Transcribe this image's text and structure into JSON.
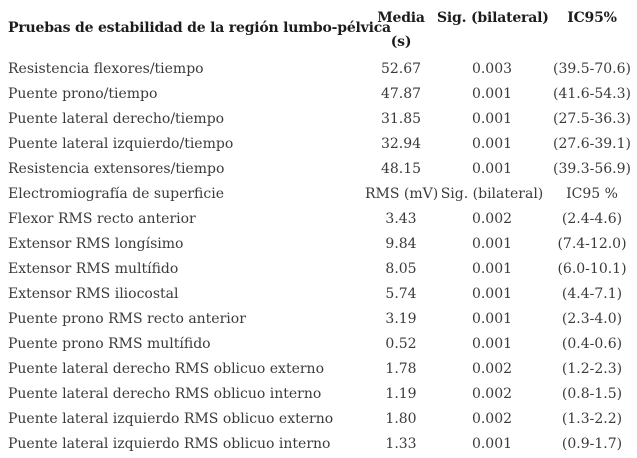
{
  "colors": {
    "background": "#ffffff",
    "text": "#3a3a3a",
    "header_text": "#1c1c1c"
  },
  "table": {
    "header": {
      "tests_label": "Pruebas de estabilidad de la región lumbo-pélvica",
      "media_line1": "Media",
      "media_line2": "(s)",
      "sig_label": "Sig. (bilateral)",
      "ic_label": "IC95%"
    },
    "rows": [
      {
        "label": "Resistencia flexores/tiempo",
        "media": "52.67",
        "sig": "0.003",
        "ic": "(39.5-70.6)"
      },
      {
        "label": "Puente prono/tiempo",
        "media": "47.87",
        "sig": "0.001",
        "ic": "(41.6-54.3)"
      },
      {
        "label": "Puente lateral derecho/tiempo",
        "media": "31.85",
        "sig": "0.001",
        "ic": "(27.5-36.3)"
      },
      {
        "label": "Puente lateral izquierdo/tiempo",
        "media": "32.94",
        "sig": "0.001",
        "ic": "(27.6-39.1)"
      },
      {
        "label": "Resistencia extensores/tiempo",
        "media": "48.15",
        "sig": "0.001",
        "ic": "(39.3-56.9)"
      },
      {
        "label": "Electromiografía de superficie",
        "media": "RMS (mV)",
        "sig": "Sig. (bilateral)",
        "ic": "IC95 %"
      },
      {
        "label": "Flexor RMS recto anterior",
        "media": "3.43",
        "sig": "0.002",
        "ic": "(2.4-4.6)"
      },
      {
        "label": "Extensor RMS longísimo",
        "media": "9.84",
        "sig": "0.001",
        "ic": "(7.4-12.0)"
      },
      {
        "label": "Extensor RMS multífido",
        "media": "8.05",
        "sig": "0.001",
        "ic": "(6.0-10.1)"
      },
      {
        "label": "Extensor RMS iliocostal",
        "media": "5.74",
        "sig": "0.001",
        "ic": "(4.4-7.1)"
      },
      {
        "label": "Puente prono RMS recto anterior",
        "media": "3.19",
        "sig": "0.001",
        "ic": "(2.3-4.0)"
      },
      {
        "label": "Puente prono RMS multífido",
        "media": "0.52",
        "sig": "0.001",
        "ic": "(0.4-0.6)"
      },
      {
        "label": "Puente lateral derecho RMS oblicuo externo",
        "media": "1.78",
        "sig": "0.002",
        "ic": "(1.2-2.3)"
      },
      {
        "label": "Puente lateral derecho RMS oblicuo interno",
        "media": "1.19",
        "sig": "0.002",
        "ic": "(0.8-1.5)"
      },
      {
        "label": "Puente lateral izquierdo RMS oblicuo externo",
        "media": "1.80",
        "sig": "0.002",
        "ic": "(1.3-2.2)"
      },
      {
        "label": "Puente lateral izquierdo RMS oblicuo interno",
        "media": "1.33",
        "sig": "0.001",
        "ic": "(0.9-1.7)"
      }
    ]
  }
}
